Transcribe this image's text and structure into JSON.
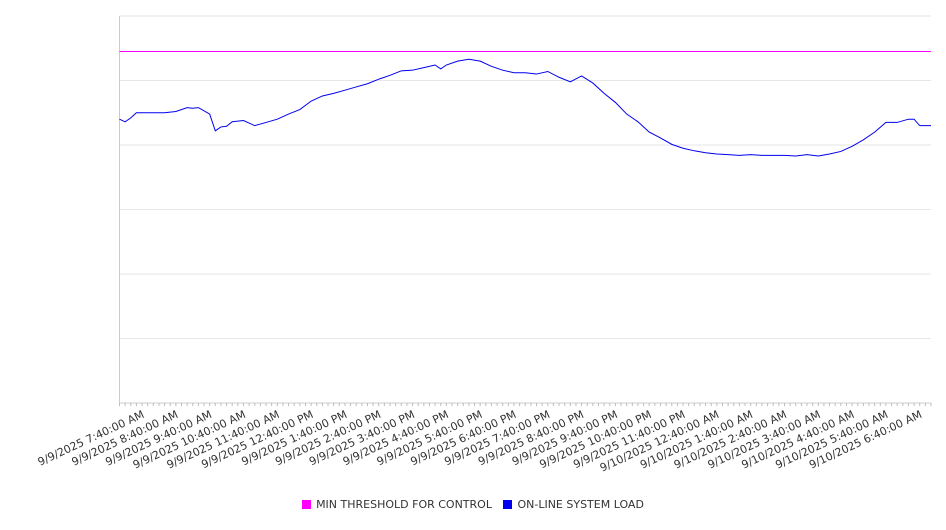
{
  "chart_data": {
    "type": "line",
    "title": "",
    "xlabel": "",
    "ylabel": "",
    "grid": true,
    "legend_position": "bottom",
    "x_start": "9/9/2025 7:00:00 AM",
    "x_end": "9/10/2025 7:00:00 AM",
    "ylim": [
      0,
      6
    ],
    "x_tick_labels": [
      "9/9/2025 7:40:00 AM",
      "9/9/2025 8:40:00 AM",
      "9/9/2025 9:40:00 AM",
      "9/9/2025 10:40:00 AM",
      "9/9/2025 11:40:00 AM",
      "9/9/2025 12:40:00 PM",
      "9/9/2025 1:40:00 PM",
      "9/9/2025 2:40:00 PM",
      "9/9/2025 3:40:00 PM",
      "9/9/2025 4:40:00 PM",
      "9/9/2025 5:40:00 PM",
      "9/9/2025 6:40:00 PM",
      "9/9/2025 7:40:00 PM",
      "9/9/2025 8:40:00 PM",
      "9/9/2025 9:40:00 PM",
      "9/9/2025 10:40:00 PM",
      "9/9/2025 11:40:00 PM",
      "9/10/2025 12:40:00 AM",
      "9/10/2025 1:40:00 AM",
      "9/10/2025 2:40:00 AM",
      "9/10/2025 3:40:00 AM",
      "9/10/2025 4:40:00 AM",
      "9/10/2025 5:40:00 AM",
      "9/10/2025 6:40:00 AM"
    ],
    "series": [
      {
        "name": "MIN THRESHOLD FOR CONTROL",
        "color": "#ff00ff",
        "x": [
          "9/9/2025 7:00:00 AM",
          "9/10/2025 7:00:00 AM"
        ],
        "y": [
          5.45,
          5.45
        ]
      },
      {
        "name": "ON-LINE SYSTEM LOAD",
        "color": "#0000ee",
        "x": [
          "9/9/2025 7:00:00 AM",
          "9/9/2025 7:10:00 AM",
          "9/9/2025 7:20:00 AM",
          "9/9/2025 7:30:00 AM",
          "9/9/2025 7:40:00 AM",
          "9/9/2025 8:00:00 AM",
          "9/9/2025 8:20:00 AM",
          "9/9/2025 8:40:00 AM",
          "9/9/2025 9:00:00 AM",
          "9/9/2025 9:10:00 AM",
          "9/9/2025 9:20:00 AM",
          "9/9/2025 9:40:00 AM",
          "9/9/2025 9:50:00 AM",
          "9/9/2025 10:00:00 AM",
          "9/9/2025 10:10:00 AM",
          "9/9/2025 10:20:00 AM",
          "9/9/2025 10:40:00 AM",
          "9/9/2025 11:00:00 AM",
          "9/9/2025 11:20:00 AM",
          "9/9/2025 11:40:00 AM",
          "9/9/2025 12:00:00 PM",
          "9/9/2025 12:20:00 PM",
          "9/9/2025 12:40:00 PM",
          "9/9/2025 1:00:00 PM",
          "9/9/2025 1:20:00 PM",
          "9/9/2025 1:40:00 PM",
          "9/9/2025 2:00:00 PM",
          "9/9/2025 2:20:00 PM",
          "9/9/2025 2:40:00 PM",
          "9/9/2025 3:00:00 PM",
          "9/9/2025 3:20:00 PM",
          "9/9/2025 3:40:00 PM",
          "9/9/2025 4:00:00 PM",
          "9/9/2025 4:20:00 PM",
          "9/9/2025 4:30:00 PM",
          "9/9/2025 4:40:00 PM",
          "9/9/2025 5:00:00 PM",
          "9/9/2025 5:20:00 PM",
          "9/9/2025 5:40:00 PM",
          "9/9/2025 6:00:00 PM",
          "9/9/2025 6:20:00 PM",
          "9/9/2025 6:40:00 PM",
          "9/9/2025 7:00:00 PM",
          "9/9/2025 7:20:00 PM",
          "9/9/2025 7:40:00 PM",
          "9/9/2025 8:00:00 PM",
          "9/9/2025 8:20:00 PM",
          "9/9/2025 8:40:00 PM",
          "9/9/2025 9:00:00 PM",
          "9/9/2025 9:20:00 PM",
          "9/9/2025 9:40:00 PM",
          "9/9/2025 10:00:00 PM",
          "9/9/2025 10:20:00 PM",
          "9/9/2025 10:40:00 PM",
          "9/9/2025 11:00:00 PM",
          "9/9/2025 11:20:00 PM",
          "9/9/2025 11:40:00 PM",
          "9/10/2025 12:00:00 AM",
          "9/10/2025 12:20:00 AM",
          "9/10/2025 12:40:00 AM",
          "9/10/2025 1:00:00 AM",
          "9/10/2025 1:20:00 AM",
          "9/10/2025 1:40:00 AM",
          "9/10/2025 2:00:00 AM",
          "9/10/2025 2:20:00 AM",
          "9/10/2025 2:40:00 AM",
          "9/10/2025 3:00:00 AM",
          "9/10/2025 3:20:00 AM",
          "9/10/2025 3:40:00 AM",
          "9/10/2025 4:00:00 AM",
          "9/10/2025 4:20:00 AM",
          "9/10/2025 4:40:00 AM",
          "9/10/2025 5:00:00 AM",
          "9/10/2025 5:20:00 AM",
          "9/10/2025 5:40:00 AM",
          "9/10/2025 6:00:00 AM",
          "9/10/2025 6:20:00 AM",
          "9/10/2025 6:30:00 AM",
          "9/10/2025 6:40:00 AM",
          "9/10/2025 6:50:00 AM",
          "9/10/2025 7:00:00 AM"
        ],
        "y": [
          4.4,
          4.36,
          4.42,
          4.5,
          4.5,
          4.5,
          4.5,
          4.52,
          4.58,
          4.57,
          4.58,
          4.48,
          4.22,
          4.28,
          4.29,
          4.36,
          4.38,
          4.3,
          4.35,
          4.4,
          4.48,
          4.55,
          4.68,
          4.76,
          4.8,
          4.85,
          4.9,
          4.95,
          5.02,
          5.08,
          5.15,
          5.16,
          5.2,
          5.24,
          5.18,
          5.24,
          5.3,
          5.33,
          5.3,
          5.22,
          5.16,
          5.12,
          5.12,
          5.1,
          5.14,
          5.05,
          4.98,
          5.07,
          4.96,
          4.8,
          4.66,
          4.48,
          4.36,
          4.2,
          4.11,
          4.01,
          3.95,
          3.91,
          3.88,
          3.86,
          3.85,
          3.84,
          3.85,
          3.84,
          3.84,
          3.84,
          3.83,
          3.85,
          3.83,
          3.86,
          3.9,
          3.98,
          4.08,
          4.2,
          4.35,
          4.35,
          4.4,
          4.4,
          4.3,
          4.3,
          4.3
        ]
      }
    ]
  }
}
